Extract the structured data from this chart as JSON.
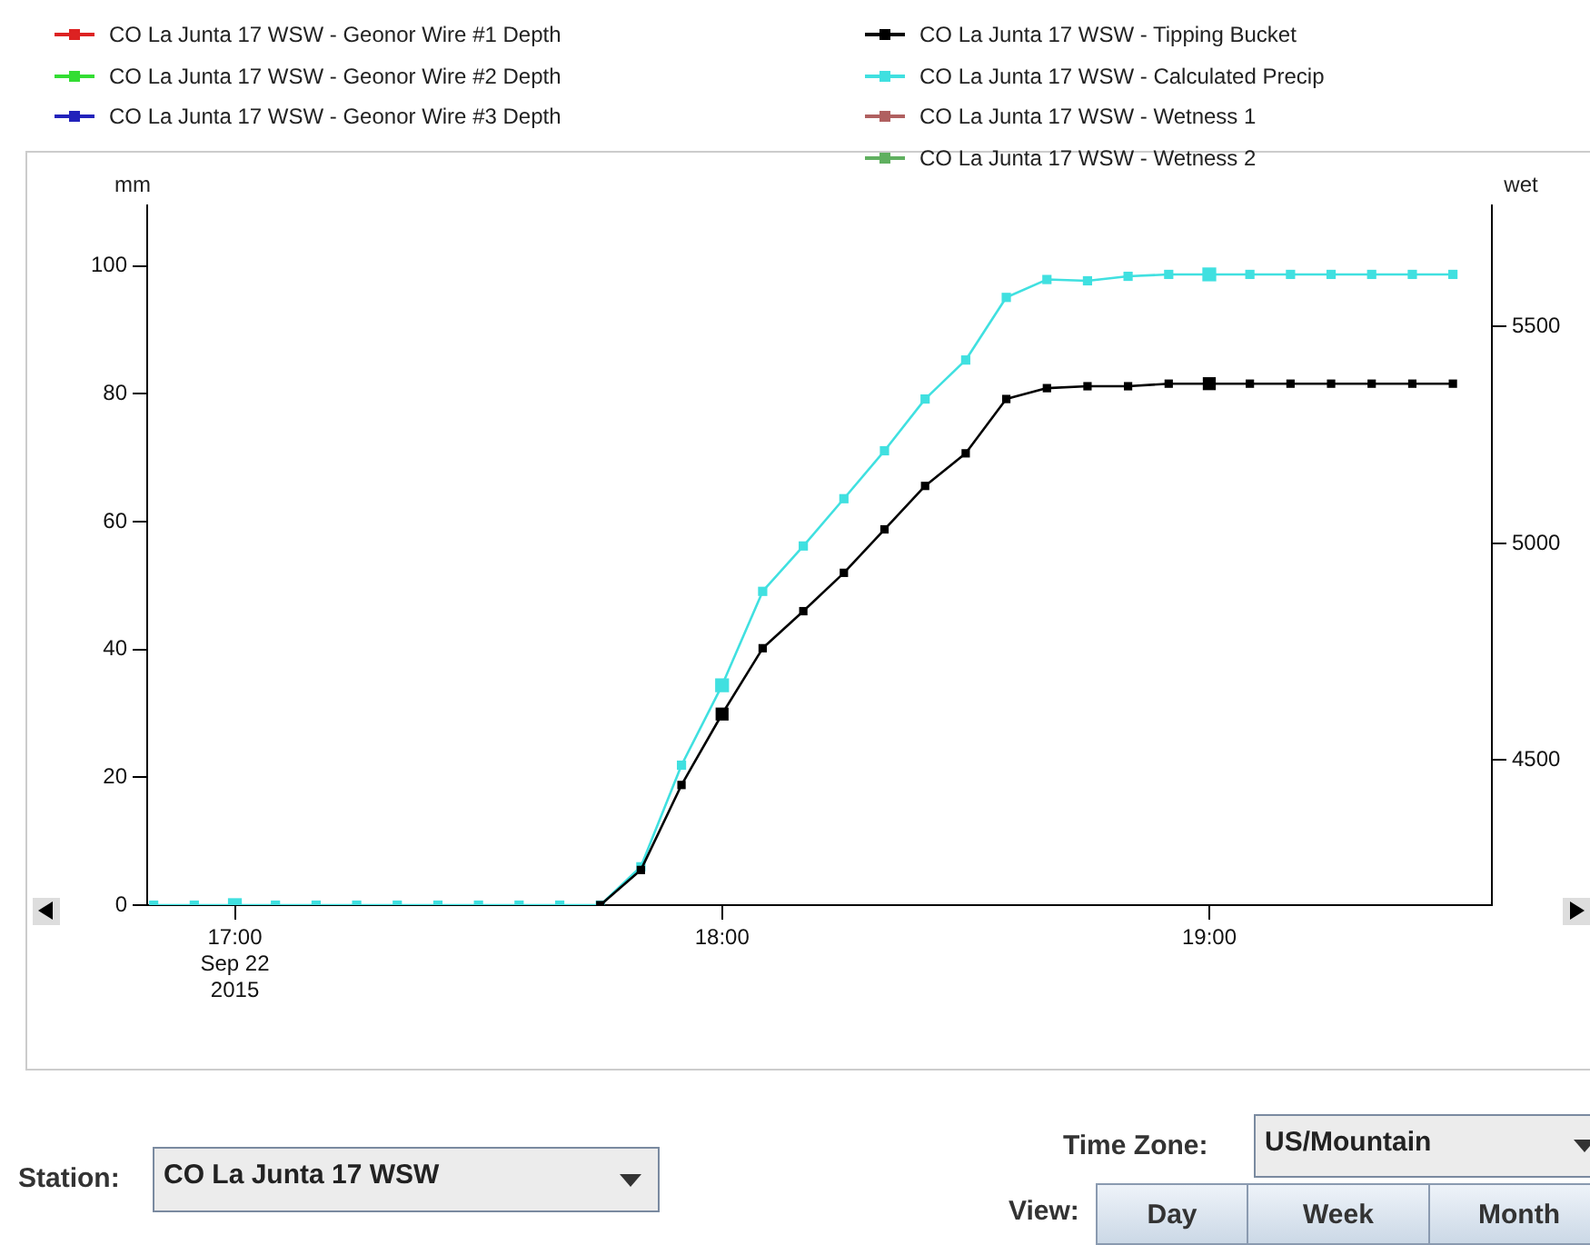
{
  "chart_data": {
    "type": "line",
    "ylabel": "mm",
    "y2label": "wet",
    "x": [
      16.8333,
      16.9167,
      17.0,
      17.0833,
      17.1667,
      17.25,
      17.3333,
      17.4167,
      17.5,
      17.5833,
      17.6667,
      17.75,
      17.8333,
      17.9167,
      18.0,
      18.0833,
      18.1667,
      18.25,
      18.3333,
      18.4167,
      18.5,
      18.5833,
      18.6667,
      18.75,
      18.8333,
      18.9167,
      19.0,
      19.0833,
      19.1667,
      19.25,
      19.3333,
      19.4167,
      19.5
    ],
    "series": [
      {
        "name": "CO La Junta 17 WSW - Geonor Wire #1 Depth",
        "color": "#dd2222",
        "values": [
          null,
          null,
          null,
          null,
          null,
          null,
          null,
          null,
          null,
          null,
          null,
          null,
          null,
          null,
          null,
          null,
          null,
          null,
          null,
          null,
          null,
          null,
          null,
          null,
          null,
          null,
          null,
          null,
          null,
          null,
          null,
          null,
          null
        ]
      },
      {
        "name": "CO La Junta 17 WSW - Geonor Wire #2 Depth",
        "color": "#33dd33",
        "values": [
          null,
          null,
          null,
          null,
          null,
          null,
          null,
          null,
          null,
          null,
          null,
          null,
          null,
          null,
          null,
          null,
          null,
          null,
          null,
          null,
          null,
          null,
          null,
          null,
          null,
          null,
          null,
          null,
          null,
          null,
          null,
          null,
          null
        ]
      },
      {
        "name": "CO La Junta 17 WSW - Geonor Wire #3 Depth",
        "color": "#2222bb",
        "values": [
          null,
          null,
          null,
          null,
          null,
          null,
          null,
          null,
          null,
          null,
          null,
          null,
          null,
          null,
          null,
          null,
          null,
          null,
          null,
          null,
          null,
          null,
          null,
          null,
          null,
          null,
          null,
          null,
          null,
          null,
          null,
          null,
          null
        ]
      },
      {
        "name": "CO La Junta 17 WSW - Tipping Bucket",
        "color": "#000000",
        "values": [
          null,
          null,
          null,
          null,
          null,
          null,
          null,
          null,
          null,
          null,
          null,
          0,
          5.5,
          18.8,
          29.9,
          40.2,
          46.0,
          52.0,
          58.8,
          65.6,
          70.7,
          79.2,
          80.9,
          81.2,
          81.2,
          81.6,
          81.6,
          81.6,
          81.6,
          81.6,
          81.6,
          81.6,
          81.6
        ]
      },
      {
        "name": "CO La Junta 17 WSW - Calculated Precip",
        "color": "#40e0e0",
        "values": [
          0,
          0,
          0,
          0,
          0,
          0,
          0,
          0,
          0,
          0,
          0,
          0,
          6.0,
          21.9,
          34.4,
          49.1,
          56.2,
          63.6,
          71.1,
          79.2,
          85.3,
          95.1,
          97.9,
          97.7,
          98.4,
          98.7,
          98.7,
          98.7,
          98.7,
          98.7,
          98.7,
          98.7,
          98.7
        ]
      },
      {
        "name": "CO La Junta 17 WSW - Wetness 1",
        "color": "#b06060",
        "values": [
          null,
          null,
          null,
          null,
          null,
          null,
          null,
          null,
          null,
          null,
          null,
          null,
          null,
          null,
          null,
          null,
          null,
          null,
          null,
          null,
          null,
          null,
          null,
          null,
          null,
          null,
          null,
          null,
          null,
          null,
          null,
          null,
          null
        ]
      },
      {
        "name": "CO La Junta 17 WSW - Wetness 2",
        "color": "#60b060",
        "values": [
          null,
          null,
          null,
          null,
          null,
          null,
          null,
          null,
          null,
          null,
          null,
          null,
          null,
          null,
          null,
          null,
          null,
          null,
          null,
          null,
          null,
          null,
          null,
          null,
          null,
          null,
          null,
          null,
          null,
          null,
          null,
          null,
          null
        ]
      }
    ],
    "xlim": [
      16.82,
      19.58
    ],
    "xticks": [
      {
        "value": 17,
        "label": "17:00\nSep 22\n2015"
      },
      {
        "value": 18,
        "label": "18:00"
      },
      {
        "value": 19,
        "label": "19:00"
      }
    ],
    "ylim": [
      0,
      109.5
    ],
    "yticks": [
      0,
      20,
      40,
      60,
      80,
      100
    ],
    "y2lim": [
      4165,
      5780
    ],
    "y2ticks": [
      4500,
      5000,
      5500
    ],
    "grid": false,
    "legend": "top",
    "marker": "square",
    "line_style": "solid",
    "annotations": [
      "Station:",
      "CO La Junta 17 WSW",
      "Time Zone:",
      "US/Mountain",
      "View:",
      "Day",
      "Week",
      "Month"
    ]
  }
}
